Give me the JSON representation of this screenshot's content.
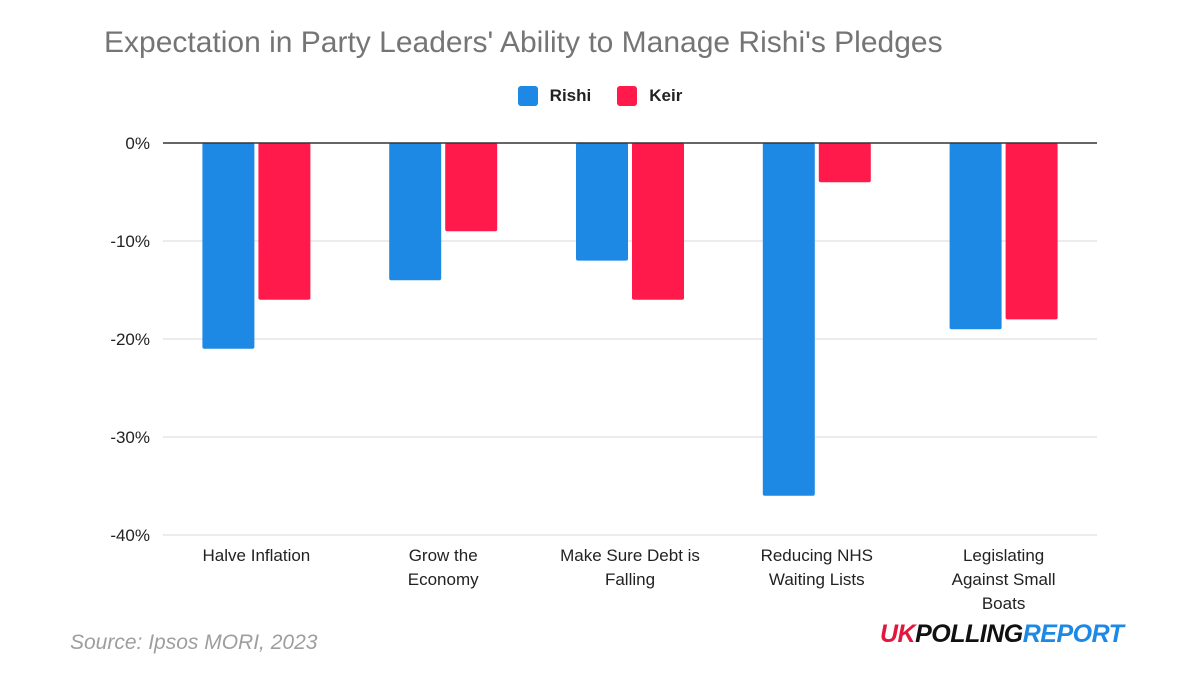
{
  "colors": {
    "rishi": "#1e88e5",
    "keir": "#ff1a4b",
    "grid": "#d9d9d9",
    "axis": "#333333",
    "text": "#222222"
  },
  "chart_data": {
    "type": "bar",
    "title": "Expectation in Party Leaders' Ability to Manage Rishi's Pledges",
    "categories": [
      [
        "Halve Inflation"
      ],
      [
        "Grow the",
        "Economy"
      ],
      [
        "Make Sure Debt is",
        "Falling"
      ],
      [
        "Reducing NHS",
        "Waiting Lists"
      ],
      [
        "Legislating",
        "Against Small",
        "Boats"
      ]
    ],
    "series": [
      {
        "name": "Rishi",
        "values": [
          -21,
          -14,
          -12,
          -36,
          -19
        ]
      },
      {
        "name": "Keir",
        "values": [
          -16,
          -9,
          -16,
          -4,
          -18
        ]
      }
    ],
    "ylim": [
      -40,
      0
    ],
    "yticks": [
      0,
      -10,
      -20,
      -30,
      -40
    ],
    "ytick_labels": [
      "0%",
      "-10%",
      "-20%",
      "-30%",
      "-40%"
    ],
    "legend_position": "top-center",
    "grid": true
  },
  "footer": {
    "source": "Source: Ipsos MORI, 2023",
    "brand_part1": "UK",
    "brand_part2": "POLLING",
    "brand_part3": "REPORT"
  }
}
